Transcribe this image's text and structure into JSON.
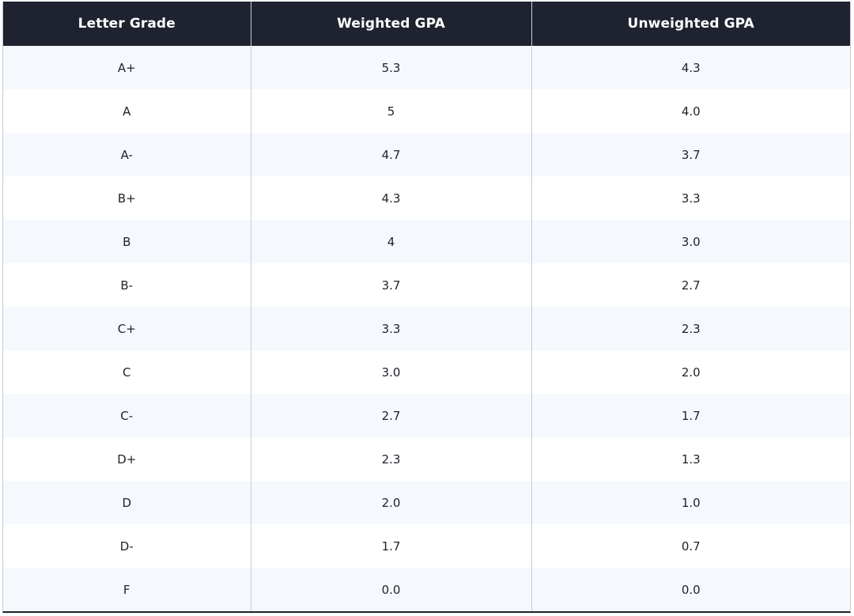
{
  "table": {
    "headers": [
      "Letter Grade",
      "Weighted GPA",
      "Unweighted GPA"
    ],
    "rows": [
      [
        "A+",
        "5.3",
        "4.3"
      ],
      [
        "A",
        "5",
        "4.0"
      ],
      [
        "A-",
        "4.7",
        "3.7"
      ],
      [
        "B+",
        "4.3",
        "3.3"
      ],
      [
        "B",
        "4",
        "3.0"
      ],
      [
        "B-",
        "3.7",
        "2.7"
      ],
      [
        "C+",
        "3.3",
        "2.3"
      ],
      [
        "C",
        "3.0",
        "2.0"
      ],
      [
        "C-",
        "2.7",
        "1.7"
      ],
      [
        "D+",
        "2.3",
        "1.3"
      ],
      [
        "D",
        "2.0",
        "1.0"
      ],
      [
        "D-",
        "1.7",
        "0.7"
      ],
      [
        "F",
        "0.0",
        "0.0"
      ]
    ]
  },
  "colors": {
    "header_background": "#1f2330",
    "header_text": "#ffffff",
    "row_alt_background": "#f5f8fc",
    "row_background": "#ffffff",
    "column_divider": "#c9ccd6"
  }
}
